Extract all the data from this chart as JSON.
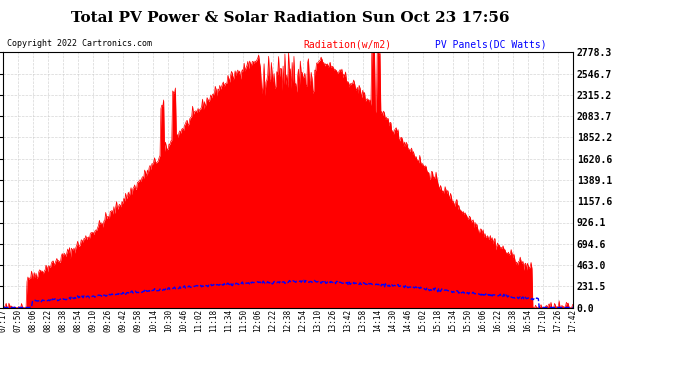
{
  "title": "Total PV Power & Solar Radiation Sun Oct 23 17:56",
  "copyright": "Copyright 2022 Cartronics.com",
  "legend_radiation": "Radiation(w/m2)",
  "legend_pv": "PV Panels(DC Watts)",
  "y_ticks": [
    0.0,
    231.5,
    463.0,
    694.6,
    926.1,
    1157.6,
    1389.1,
    1620.6,
    1852.2,
    2083.7,
    2315.2,
    2546.7,
    2778.3
  ],
  "y_max": 2778.3,
  "x_labels": [
    "07:17",
    "07:50",
    "08:06",
    "08:22",
    "08:38",
    "08:54",
    "09:10",
    "09:26",
    "09:42",
    "09:58",
    "10:14",
    "10:30",
    "10:46",
    "11:02",
    "11:18",
    "11:34",
    "11:50",
    "12:06",
    "12:22",
    "12:38",
    "12:54",
    "13:10",
    "13:26",
    "13:42",
    "13:58",
    "14:14",
    "14:30",
    "14:46",
    "15:02",
    "15:18",
    "15:34",
    "15:50",
    "16:06",
    "16:22",
    "16:38",
    "16:54",
    "17:10",
    "17:26",
    "17:42"
  ],
  "background_color": "#ffffff",
  "plot_bg_color": "#ffffff",
  "radiation_fill_color": "#ff0000",
  "radiation_line_color": "#ff0000",
  "pv_line_color": "#0000ff",
  "grid_color": "#cccccc",
  "title_color": "#000000",
  "copyright_color": "#000000",
  "legend_radiation_color": "#ff0000",
  "legend_pv_color": "#0000ff"
}
